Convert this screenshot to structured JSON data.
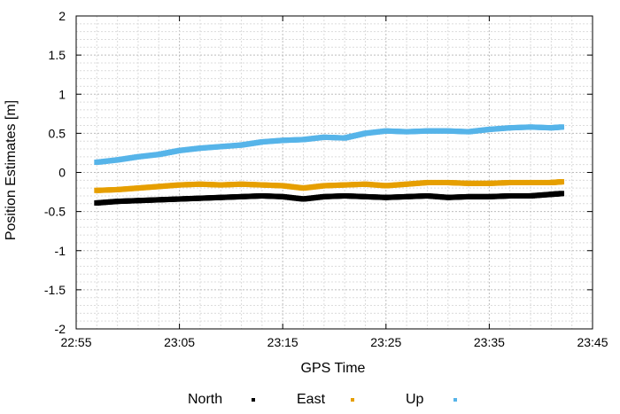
{
  "chart_data": {
    "type": "scatter",
    "xlabel": "GPS Time",
    "ylabel": "Position Estimates [m]",
    "x_ticks": [
      "22:55",
      "23:05",
      "23:15",
      "23:25",
      "23:35",
      "23:45"
    ],
    "xlim": [
      "22:55",
      "23:45"
    ],
    "ylim": [
      -2,
      2
    ],
    "y_ticks": [
      "-2",
      "-1.5",
      "-1",
      "-0.5",
      "0",
      "0.5",
      "1",
      "1.5",
      "2"
    ],
    "grid": true,
    "legend_position": "bottom",
    "series": [
      {
        "name": "North",
        "color": "#000000",
        "points": [
          [
            "22:57",
            -0.39
          ],
          [
            "22:59",
            -0.37
          ],
          [
            "23:01",
            -0.36
          ],
          [
            "23:03",
            -0.35
          ],
          [
            "23:05",
            -0.34
          ],
          [
            "23:07",
            -0.33
          ],
          [
            "23:09",
            -0.32
          ],
          [
            "23:11",
            -0.31
          ],
          [
            "23:13",
            -0.3
          ],
          [
            "23:15",
            -0.31
          ],
          [
            "23:17",
            -0.34
          ],
          [
            "23:19",
            -0.31
          ],
          [
            "23:21",
            -0.3
          ],
          [
            "23:23",
            -0.31
          ],
          [
            "23:25",
            -0.32
          ],
          [
            "23:27",
            -0.31
          ],
          [
            "23:29",
            -0.3
          ],
          [
            "23:31",
            -0.32
          ],
          [
            "23:33",
            -0.31
          ],
          [
            "23:35",
            -0.31
          ],
          [
            "23:37",
            -0.3
          ],
          [
            "23:39",
            -0.3
          ],
          [
            "23:41",
            -0.28
          ],
          [
            "23:42",
            -0.27
          ]
        ]
      },
      {
        "name": "East",
        "color": "#E69F00",
        "points": [
          [
            "22:57",
            -0.23
          ],
          [
            "22:59",
            -0.22
          ],
          [
            "23:01",
            -0.2
          ],
          [
            "23:03",
            -0.18
          ],
          [
            "23:05",
            -0.16
          ],
          [
            "23:07",
            -0.15
          ],
          [
            "23:09",
            -0.16
          ],
          [
            "23:11",
            -0.15
          ],
          [
            "23:13",
            -0.16
          ],
          [
            "23:15",
            -0.17
          ],
          [
            "23:17",
            -0.2
          ],
          [
            "23:19",
            -0.17
          ],
          [
            "23:21",
            -0.16
          ],
          [
            "23:23",
            -0.15
          ],
          [
            "23:25",
            -0.17
          ],
          [
            "23:27",
            -0.15
          ],
          [
            "23:29",
            -0.13
          ],
          [
            "23:31",
            -0.13
          ],
          [
            "23:33",
            -0.14
          ],
          [
            "23:35",
            -0.14
          ],
          [
            "23:37",
            -0.13
          ],
          [
            "23:39",
            -0.13
          ],
          [
            "23:41",
            -0.13
          ],
          [
            "23:42",
            -0.12
          ]
        ]
      },
      {
        "name": "Up",
        "color": "#56B4E9",
        "points": [
          [
            "22:57",
            0.13
          ],
          [
            "22:59",
            0.16
          ],
          [
            "23:01",
            0.2
          ],
          [
            "23:03",
            0.23
          ],
          [
            "23:05",
            0.28
          ],
          [
            "23:07",
            0.31
          ],
          [
            "23:09",
            0.33
          ],
          [
            "23:11",
            0.35
          ],
          [
            "23:13",
            0.39
          ],
          [
            "23:15",
            0.41
          ],
          [
            "23:17",
            0.42
          ],
          [
            "23:19",
            0.45
          ],
          [
            "23:21",
            0.44
          ],
          [
            "23:23",
            0.5
          ],
          [
            "23:25",
            0.53
          ],
          [
            "23:27",
            0.52
          ],
          [
            "23:29",
            0.53
          ],
          [
            "23:31",
            0.53
          ],
          [
            "23:33",
            0.52
          ],
          [
            "23:35",
            0.55
          ],
          [
            "23:37",
            0.57
          ],
          [
            "23:39",
            0.58
          ],
          [
            "23:41",
            0.57
          ],
          [
            "23:42",
            0.58
          ]
        ]
      }
    ]
  }
}
